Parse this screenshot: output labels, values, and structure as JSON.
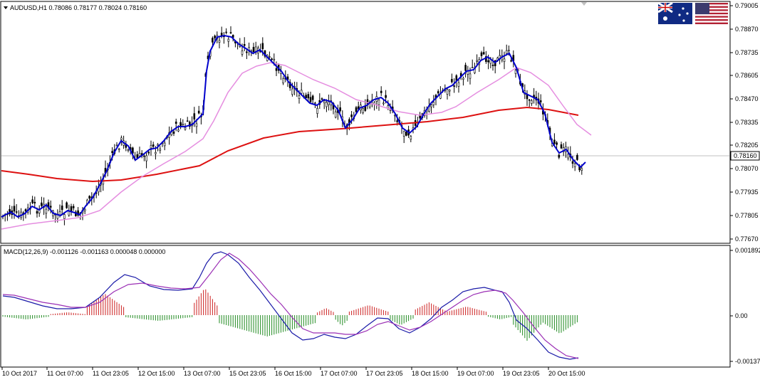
{
  "header": {
    "symbol_line": "AUDUSD,H1  0.78086 0.78177 0.78024 0.78160",
    "flags": [
      "australia-flag-icon",
      "usa-flag-icon"
    ]
  },
  "price_axis": {
    "labels": [
      "0.79005",
      "0.78870",
      "0.78735",
      "0.78605",
      "0.78470",
      "0.78335",
      "0.78205",
      "0.78070",
      "0.77935",
      "0.77805",
      "0.77670"
    ],
    "current_price": "0.78160"
  },
  "macd": {
    "header": "MACD(12,26,9) -0.001126 -0.001163 0.000048 0.000000",
    "axis_labels": [
      "0.001892",
      "0.00",
      "-0.001373"
    ]
  },
  "time_axis": {
    "labels": [
      "10 Oct 2017",
      "11 Oct 07:00",
      "11 Oct 23:05",
      "12 Oct 15:00",
      "13 Oct 07:00",
      "15 Oct 23:05",
      "16 Oct 15:00",
      "17 Oct 07:00",
      "17 Oct 23:05",
      "18 Oct 15:00",
      "19 Oct 07:00",
      "19 Oct 23:05",
      "20 Oct 15:00"
    ]
  },
  "colors": {
    "background": "#ffffff",
    "border": "#000000",
    "candle": "#000000",
    "fast_ma": "#0000cc",
    "slow_ma": "#e58ee0",
    "long_ma": "#dd1111",
    "macd_line": "#1a1aa8",
    "signal_line": "#9b2fb5",
    "hist_up": "#cc2222",
    "hist_down": "#228b22",
    "grid_line": "#c0c0c0"
  },
  "chart_data": [
    {
      "type": "candlestick",
      "title": "AUDUSD,H1",
      "ohlc_last": {
        "open": 0.78086,
        "high": 0.78177,
        "low": 0.78024,
        "close": 0.7816
      },
      "ylim": [
        0.7767,
        0.7902
      ],
      "x_ticks": [
        "10 Oct 2017",
        "11 Oct 07:00",
        "11 Oct 23:05",
        "12 Oct 15:00",
        "13 Oct 07:00",
        "15 Oct 23:05",
        "16 Oct 15:00",
        "17 Oct 07:00",
        "17 Oct 23:05",
        "18 Oct 15:00",
        "19 Oct 07:00",
        "19 Oct 23:05",
        "20 Oct 15:00"
      ],
      "close_path": [
        0.7786,
        0.7783,
        0.779,
        0.7796,
        0.7793,
        0.7787,
        0.7782,
        0.7776,
        0.7779,
        0.7793,
        0.7808,
        0.7826,
        0.7831,
        0.7822,
        0.781,
        0.7817,
        0.7825,
        0.7829,
        0.7826,
        0.7834,
        0.7841,
        0.7886,
        0.7889,
        0.7883,
        0.7879,
        0.787,
        0.7868,
        0.7864,
        0.7862,
        0.7847,
        0.7839,
        0.7843,
        0.786,
        0.7849,
        0.7831,
        0.7836,
        0.7853,
        0.785,
        0.7845,
        0.7832,
        0.7821,
        0.7826,
        0.7832,
        0.7842,
        0.7842,
        0.7846,
        0.7858,
        0.7866,
        0.7862,
        0.7871,
        0.7876,
        0.7877,
        0.7869,
        0.7873,
        0.7865,
        0.7836,
        0.7842,
        0.7832,
        0.7816,
        0.7808,
        0.7812,
        0.781,
        0.7807,
        0.7812,
        0.7816
      ],
      "series": [
        {
          "name": "",
          "role": "fast moving average",
          "color": "#0000cc"
        },
        {
          "name": "",
          "role": "slow moving average",
          "color": "#e58ee0"
        },
        {
          "name": "",
          "role": "long moving average",
          "color": "#dd1111"
        }
      ]
    },
    {
      "type": "macd",
      "title": "MACD(12,26,9)",
      "values": {
        "macd": -0.001126,
        "signal": -0.001163,
        "histogram": 4.8e-05,
        "zero": 0.0
      },
      "ylim": [
        -0.001373,
        0.001892
      ]
    }
  ]
}
